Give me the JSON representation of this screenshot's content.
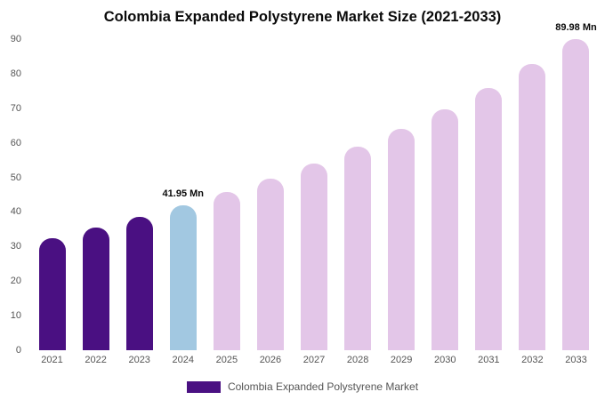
{
  "chart_data": {
    "type": "bar",
    "title": "Colombia Expanded Polystyrene Market Size (2021-2033)",
    "categories": [
      "2021",
      "2022",
      "2023",
      "2024",
      "2025",
      "2026",
      "2027",
      "2028",
      "2029",
      "2030",
      "2031",
      "2032",
      "2033"
    ],
    "values": [
      32.5,
      35.4,
      38.5,
      41.95,
      45.7,
      49.7,
      54.1,
      58.9,
      64.1,
      69.8,
      75.9,
      82.7,
      89.98
    ],
    "unit": "Mn",
    "ylim": [
      0,
      90
    ],
    "yticks": [
      0,
      10,
      20,
      30,
      40,
      50,
      60,
      70,
      80,
      90
    ],
    "grid": false,
    "bar_colors": [
      "#4A1082",
      "#4A1082",
      "#4A1082",
      "#A2C8E1",
      "#E3C6E8",
      "#E3C6E8",
      "#E3C6E8",
      "#E3C6E8",
      "#E3C6E8",
      "#E3C6E8",
      "#E3C6E8",
      "#E3C6E8",
      "#E3C6E8"
    ],
    "annotations": [
      {
        "category": "2024",
        "text": "41.95 Mn"
      },
      {
        "category": "2033",
        "text": "89.98 Mn"
      }
    ],
    "legend": [
      {
        "label": "Colombia Expanded Polystyrene Market",
        "color": "#4A1082"
      }
    ],
    "legend_position": "bottom"
  }
}
